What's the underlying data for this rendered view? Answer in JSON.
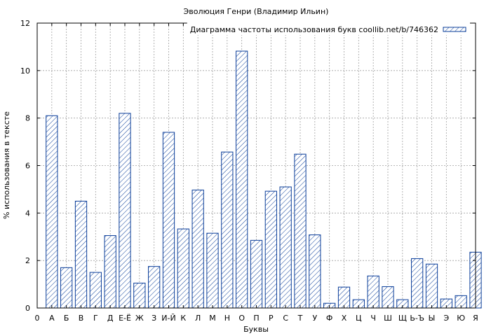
{
  "chart_data": {
    "type": "bar",
    "title": "Эволюция Генри (Владимир Ильин)",
    "xlabel": "Буквы",
    "ylabel": "% использования в тексте",
    "x_start_label": "0",
    "categories": [
      "А",
      "Б",
      "В",
      "Г",
      "Д",
      "Е-Ё",
      "Ж",
      "З",
      "И-Й",
      "К",
      "Л",
      "М",
      "Н",
      "О",
      "П",
      "Р",
      "С",
      "Т",
      "У",
      "Ф",
      "Х",
      "Ц",
      "Ч",
      "Ш",
      "Щ",
      "Ь-Ъ",
      "Ы",
      "Э",
      "Ю",
      "Я"
    ],
    "series": [
      {
        "name": "Диаграмма частоты использования букв coollib.net/b/746362",
        "values": [
          8.1,
          1.7,
          4.5,
          1.5,
          3.05,
          8.2,
          1.05,
          1.75,
          7.4,
          3.33,
          4.97,
          3.15,
          6.57,
          10.82,
          2.85,
          4.92,
          5.1,
          6.48,
          3.08,
          0.2,
          0.88,
          0.35,
          1.35,
          0.9,
          0.35,
          2.08,
          1.85,
          0.38,
          0.52,
          2.35
        ]
      }
    ],
    "ylim": [
      0,
      12
    ],
    "yticks": [
      0,
      2,
      4,
      6,
      8,
      10,
      12
    ],
    "grid": true,
    "legend_position": "top-right",
    "colors": {
      "bar_stroke": "#0a3d99",
      "grid": "#a0a0a0"
    }
  }
}
